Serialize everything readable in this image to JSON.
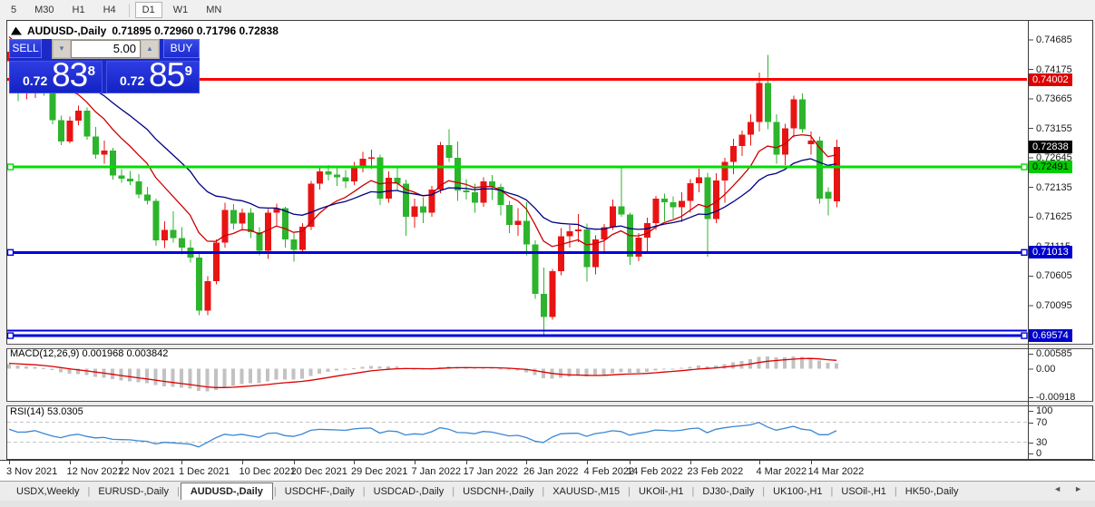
{
  "toolbar": {
    "timeframes": [
      "5",
      "M30",
      "H1",
      "H4",
      "D1",
      "W1",
      "MN"
    ],
    "active": "D1",
    "active_index": 4
  },
  "chart": {
    "symbol": "AUDUSD-,Daily",
    "ohlc": "0.71895 0.72960 0.71796 0.72838",
    "open": "0.71895",
    "high": "0.72960",
    "low": "0.71796",
    "close": "0.72838"
  },
  "trade_panel": {
    "sell_label": "SELL",
    "buy_label": "BUY",
    "volume": "5.00",
    "down_icon": "▼",
    "up_icon": "▲",
    "sell_price": {
      "prefix": "0.72",
      "big": "83",
      "sup": "8"
    },
    "buy_price": {
      "prefix": "0.72",
      "big": "85",
      "sup": "9"
    }
  },
  "price_axis": {
    "ticks": [
      "0.74685",
      "0.74175",
      "0.73665",
      "0.73155",
      "0.72645",
      "0.72135",
      "0.71625",
      "0.71115",
      "0.70605",
      "0.70095"
    ],
    "tags": [
      {
        "text": "0.74002",
        "price": 0.74002,
        "bg": "#dd0000",
        "fg": "#ffffff"
      },
      {
        "text": "0.72838",
        "price": 0.72838,
        "bg": "#000000",
        "fg": "#ffffff"
      },
      {
        "text": "0.72491",
        "price": 0.72491,
        "bg": "#00cc00",
        "fg": "#000000"
      },
      {
        "text": "0.71013",
        "price": 0.71013,
        "bg": "#0000cc",
        "fg": "#ffffff"
      },
      {
        "text": "0.69574",
        "price": 0.69574,
        "bg": "#0000cc",
        "fg": "#ffffff"
      }
    ]
  },
  "indicators": {
    "macd": {
      "label": "MACD(12,26,9)",
      "main_value": "0.001968",
      "signal_value": "0.003842",
      "axis": [
        "0.00585",
        "0.00",
        "-0.00918"
      ]
    },
    "rsi": {
      "label": "RSI(14)",
      "value": "53.0305",
      "axis": [
        "100",
        "70",
        "30",
        "0"
      ]
    }
  },
  "x_axis": {
    "labels": [
      {
        "text": "3 Nov 2021",
        "bar": 0
      },
      {
        "text": "12 Nov 2021",
        "bar": 7
      },
      {
        "text": "22 Nov 2021",
        "bar": 13
      },
      {
        "text": "1 Dec 2021",
        "bar": 20
      },
      {
        "text": "10 Dec 2021",
        "bar": 27
      },
      {
        "text": "20 Dec 2021",
        "bar": 33
      },
      {
        "text": "29 Dec 2021",
        "bar": 40
      },
      {
        "text": "7 Jan 2022",
        "bar": 47
      },
      {
        "text": "17 Jan 2022",
        "bar": 53
      },
      {
        "text": "26 Jan 2022",
        "bar": 60
      },
      {
        "text": "4 Feb 2022",
        "bar": 67
      },
      {
        "text": "14 Feb 2022",
        "bar": 72
      },
      {
        "text": "23 Feb 2022",
        "bar": 79
      },
      {
        "text": "4 Mar 2022",
        "bar": 87
      },
      {
        "text": "14 Mar 2022",
        "bar": 93
      }
    ]
  },
  "tabs": {
    "items": [
      "USDX,Weekly",
      "EURUSD-,Daily",
      "AUDUSD-,Daily",
      "USDCHF-,Daily",
      "USDCAD-,Daily",
      "USDCNH-,Daily",
      "XAUUSD-,M15",
      "UKOil-,H1",
      "DJ30-,Daily",
      "UK100-,H1",
      "USOil-,H1",
      "HK50-,Daily"
    ],
    "active_index": 2,
    "scroll_left_icon": "◄",
    "scroll_right_icon": "►"
  },
  "colors": {
    "bull_candle": "#e81414",
    "bear_candle": "#2db42d",
    "ma_fast": "#cc0000",
    "ma_slow": "#000080",
    "macd_hist": "#c2c2c2",
    "macd_signal": "#dd0000",
    "rsi_line": "#3a87d4",
    "hline_red": "#ff0000",
    "hline_green": "#00dd00",
    "hline_blue": "#0000dd"
  },
  "chart_data": {
    "type": "candlestick",
    "symbol": "AUDUSD",
    "timeframe": "Daily",
    "ylim": [
      0.6945,
      0.75
    ],
    "grid": false,
    "bars": [
      [
        0.7432,
        0.7455,
        0.742,
        0.7448
      ],
      [
        0.7448,
        0.7455,
        0.7363,
        0.7399
      ],
      [
        0.7399,
        0.7418,
        0.7366,
        0.7402
      ],
      [
        0.7402,
        0.7431,
        0.7368,
        0.7425
      ],
      [
        0.7425,
        0.743,
        0.7372,
        0.7379
      ],
      [
        0.7379,
        0.7398,
        0.7323,
        0.733
      ],
      [
        0.733,
        0.7338,
        0.7287,
        0.7293
      ],
      [
        0.7293,
        0.7336,
        0.729,
        0.7329
      ],
      [
        0.7329,
        0.7355,
        0.7321,
        0.7346
      ],
      [
        0.7346,
        0.7352,
        0.7296,
        0.7302
      ],
      [
        0.7302,
        0.7318,
        0.7263,
        0.727
      ],
      [
        0.727,
        0.7295,
        0.7255,
        0.7277
      ],
      [
        0.7277,
        0.7282,
        0.7227,
        0.7234
      ],
      [
        0.7234,
        0.7245,
        0.7222,
        0.7229
      ],
      [
        0.7229,
        0.7242,
        0.7218,
        0.7224
      ],
      [
        0.7224,
        0.7237,
        0.7195,
        0.7201
      ],
      [
        0.7201,
        0.7215,
        0.7184,
        0.719
      ],
      [
        0.719,
        0.7194,
        0.7113,
        0.7122
      ],
      [
        0.7122,
        0.7155,
        0.7109,
        0.714
      ],
      [
        0.714,
        0.7172,
        0.7118,
        0.7126
      ],
      [
        0.7126,
        0.7145,
        0.7098,
        0.711
      ],
      [
        0.711,
        0.7123,
        0.7084,
        0.7092
      ],
      [
        0.7092,
        0.7103,
        0.6993,
        0.7001
      ],
      [
        0.7001,
        0.706,
        0.6993,
        0.7052
      ],
      [
        0.7052,
        0.7124,
        0.7046,
        0.7118
      ],
      [
        0.7118,
        0.7187,
        0.711,
        0.7175
      ],
      [
        0.7175,
        0.7185,
        0.7141,
        0.7151
      ],
      [
        0.7151,
        0.7177,
        0.7141,
        0.717
      ],
      [
        0.717,
        0.7178,
        0.7126,
        0.7136
      ],
      [
        0.7136,
        0.7145,
        0.7096,
        0.7104
      ],
      [
        0.7104,
        0.7176,
        0.709,
        0.717
      ],
      [
        0.717,
        0.7186,
        0.7147,
        0.7178
      ],
      [
        0.7178,
        0.718,
        0.711,
        0.7124
      ],
      [
        0.7124,
        0.7135,
        0.7085,
        0.7106
      ],
      [
        0.7106,
        0.7152,
        0.71,
        0.7146
      ],
      [
        0.7146,
        0.7225,
        0.714,
        0.722
      ],
      [
        0.722,
        0.7248,
        0.721,
        0.7241
      ],
      [
        0.7241,
        0.7252,
        0.7226,
        0.7236
      ],
      [
        0.7236,
        0.7248,
        0.7216,
        0.7231
      ],
      [
        0.7231,
        0.7244,
        0.7212,
        0.7224
      ],
      [
        0.7224,
        0.7258,
        0.7218,
        0.7251
      ],
      [
        0.7251,
        0.7275,
        0.724,
        0.7263
      ],
      [
        0.7263,
        0.7279,
        0.7246,
        0.7266
      ],
      [
        0.7266,
        0.727,
        0.7183,
        0.7194
      ],
      [
        0.7194,
        0.7241,
        0.7187,
        0.723
      ],
      [
        0.723,
        0.7251,
        0.7209,
        0.722
      ],
      [
        0.722,
        0.7227,
        0.713,
        0.7163
      ],
      [
        0.7163,
        0.7194,
        0.7144,
        0.7181
      ],
      [
        0.7181,
        0.7197,
        0.7152,
        0.717
      ],
      [
        0.717,
        0.7216,
        0.7163,
        0.721
      ],
      [
        0.721,
        0.7292,
        0.7204,
        0.7287
      ],
      [
        0.7287,
        0.7314,
        0.7258,
        0.7265
      ],
      [
        0.7265,
        0.7293,
        0.719,
        0.7208
      ],
      [
        0.7208,
        0.7228,
        0.7193,
        0.7205
      ],
      [
        0.7205,
        0.722,
        0.717,
        0.7187
      ],
      [
        0.7187,
        0.7231,
        0.718,
        0.7224
      ],
      [
        0.7224,
        0.7235,
        0.7192,
        0.7215
      ],
      [
        0.7215,
        0.722,
        0.7165,
        0.7183
      ],
      [
        0.7183,
        0.719,
        0.7135,
        0.7149
      ],
      [
        0.7149,
        0.7178,
        0.713,
        0.7156
      ],
      [
        0.7156,
        0.7188,
        0.7096,
        0.7115
      ],
      [
        0.7115,
        0.7122,
        0.7021,
        0.703
      ],
      [
        0.703,
        0.7075,
        0.6958,
        0.699
      ],
      [
        0.699,
        0.7073,
        0.6985,
        0.7069
      ],
      [
        0.7069,
        0.7143,
        0.7062,
        0.7129
      ],
      [
        0.7129,
        0.7149,
        0.711,
        0.7138
      ],
      [
        0.7138,
        0.7168,
        0.7119,
        0.7141
      ],
      [
        0.7141,
        0.7151,
        0.7051,
        0.7076
      ],
      [
        0.7076,
        0.7131,
        0.7063,
        0.7124
      ],
      [
        0.7124,
        0.715,
        0.7101,
        0.7145
      ],
      [
        0.7145,
        0.7193,
        0.714,
        0.7181
      ],
      [
        0.7181,
        0.7248,
        0.7163,
        0.7167
      ],
      [
        0.7167,
        0.717,
        0.708,
        0.7094
      ],
      [
        0.7094,
        0.7135,
        0.7086,
        0.7127
      ],
      [
        0.7127,
        0.7161,
        0.71,
        0.7152
      ],
      [
        0.7152,
        0.7199,
        0.714,
        0.7194
      ],
      [
        0.7194,
        0.7203,
        0.7155,
        0.7188
      ],
      [
        0.7188,
        0.7198,
        0.716,
        0.7179
      ],
      [
        0.7179,
        0.7205,
        0.7154,
        0.719
      ],
      [
        0.719,
        0.7228,
        0.717,
        0.7221
      ],
      [
        0.7221,
        0.7246,
        0.7205,
        0.7231
      ],
      [
        0.7231,
        0.7239,
        0.7094,
        0.7159
      ],
      [
        0.7159,
        0.7238,
        0.7152,
        0.7226
      ],
      [
        0.7226,
        0.7265,
        0.7187,
        0.7258
      ],
      [
        0.7258,
        0.7298,
        0.7237,
        0.7285
      ],
      [
        0.7285,
        0.7312,
        0.7268,
        0.7305
      ],
      [
        0.7305,
        0.734,
        0.7286,
        0.7327
      ],
      [
        0.7327,
        0.7412,
        0.731,
        0.7394
      ],
      [
        0.7394,
        0.7443,
        0.7314,
        0.7327
      ],
      [
        0.7327,
        0.734,
        0.7255,
        0.727
      ],
      [
        0.727,
        0.7324,
        0.7252,
        0.7316
      ],
      [
        0.7316,
        0.7372,
        0.73,
        0.7366
      ],
      [
        0.7366,
        0.7376,
        0.7308,
        0.7314
      ],
      [
        0.7288,
        0.731,
        0.727,
        0.7295
      ],
      [
        0.7295,
        0.7302,
        0.7186,
        0.7194
      ],
      [
        0.7206,
        0.7214,
        0.7165,
        0.7194
      ],
      [
        0.71895,
        0.7296,
        0.71796,
        0.72838
      ]
    ],
    "hlines": [
      {
        "price": 0.74002,
        "color": "#ff0000",
        "width": 3,
        "selected": false
      },
      {
        "price": 0.72491,
        "color": "#00dd00",
        "width": 3,
        "selected": true
      },
      {
        "price": 0.71013,
        "color": "#0000dd",
        "width": 3,
        "selected": true
      },
      {
        "price": 0.6966,
        "color": "#0000dd",
        "width": 2,
        "selected": false
      },
      {
        "price": 0.69574,
        "color": "#0000dd",
        "width": 3,
        "selected": true
      }
    ],
    "moving_averages": [
      {
        "type": "ema",
        "period": 10,
        "color": "#cc0000",
        "seed": 0.748
      },
      {
        "type": "ema",
        "period": 22,
        "color": "#000080",
        "seed": 0.7448
      }
    ],
    "macd": {
      "fast": 12,
      "slow": 26,
      "signal": 9,
      "current_main": 0.001968,
      "current_signal": 0.003842,
      "hist_max_label": 0.00585,
      "hist_min_label": -0.00918
    },
    "rsi": {
      "period": 14,
      "current": 53.0305,
      "levels": [
        70,
        30
      ]
    }
  }
}
